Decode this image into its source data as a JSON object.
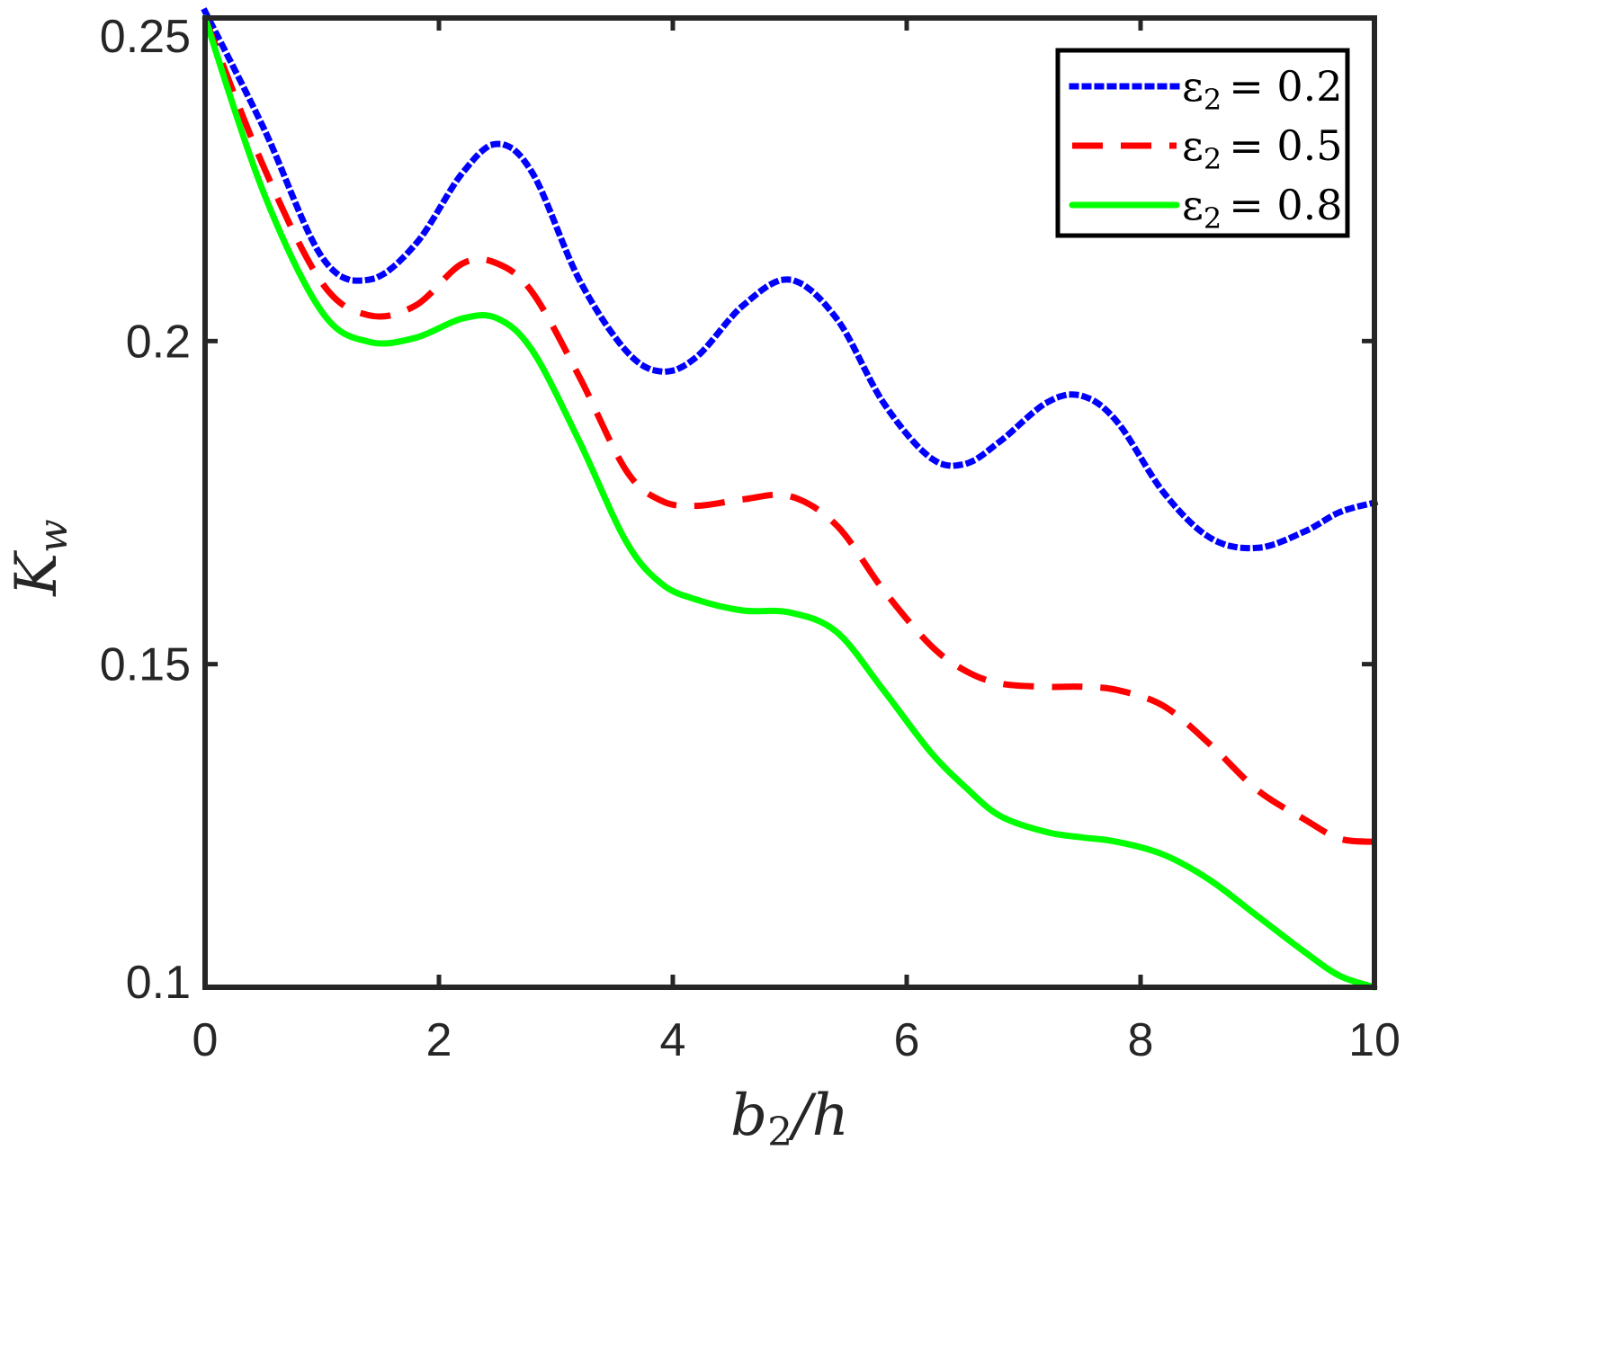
{
  "chart_data": {
    "type": "line",
    "title": "",
    "xlabel": "b_2/h",
    "ylabel": "K_w",
    "xlabel_parts": {
      "base": "b",
      "sub": "2",
      "rest": "/h"
    },
    "ylabel_parts": {
      "base": "K",
      "sub": "w"
    },
    "xlim": [
      0,
      10
    ],
    "ylim": [
      0.1,
      0.25
    ],
    "xticks": [
      0,
      2,
      4,
      6,
      8,
      10
    ],
    "xtick_labels": [
      "0",
      "2",
      "4",
      "6",
      "8",
      "10"
    ],
    "yticks": [
      0.1,
      0.15,
      0.2,
      0.25
    ],
    "ytick_labels": [
      "0.1",
      "0.15",
      "0.2",
      "0.25"
    ],
    "grid": false,
    "legend_position": "top-right",
    "x": [
      0,
      0.5,
      1.0,
      1.4,
      1.8,
      2.2,
      2.5,
      2.8,
      3.2,
      3.6,
      3.9,
      4.2,
      4.6,
      5.0,
      5.4,
      5.8,
      6.2,
      6.5,
      6.8,
      7.2,
      7.5,
      7.8,
      8.2,
      8.6,
      9.0,
      9.4,
      9.7,
      10.0
    ],
    "series": [
      {
        "name": "ε2 = 0.2",
        "legend_symbol": "ε",
        "legend_sub": "2",
        "legend_value": "= 0.2",
        "color": "#0000ff",
        "style": "dotted",
        "values": [
          0.251,
          0.233,
          0.213,
          0.2095,
          0.215,
          0.226,
          0.2305,
          0.226,
          0.2095,
          0.1985,
          0.1953,
          0.1975,
          0.2055,
          0.2095,
          0.2035,
          0.1905,
          0.182,
          0.181,
          0.1845,
          0.1905,
          0.1915,
          0.1875,
          0.1765,
          0.1695,
          0.168,
          0.1705,
          0.1735,
          0.175
        ]
      },
      {
        "name": "ε2 = 0.5",
        "legend_symbol": "ε",
        "legend_sub": "2",
        "legend_value": "= 0.5",
        "color": "#ff0000",
        "style": "dashed",
        "values": [
          0.25,
          0.227,
          0.209,
          0.204,
          0.2055,
          0.212,
          0.212,
          0.2075,
          0.1945,
          0.18,
          0.1753,
          0.1745,
          0.1755,
          0.176,
          0.1715,
          0.1615,
          0.153,
          0.149,
          0.147,
          0.1465,
          0.1465,
          0.146,
          0.1435,
          0.1375,
          0.1305,
          0.126,
          0.123,
          0.1225
        ]
      },
      {
        "name": "ε2 = 0.8",
        "legend_symbol": "ε",
        "legend_sub": "2",
        "legend_value": "= 0.8",
        "color": "#00ff00",
        "style": "solid",
        "values": [
          0.25,
          0.223,
          0.2045,
          0.1999,
          0.2005,
          0.2035,
          0.2035,
          0.1985,
          0.1845,
          0.169,
          0.1625,
          0.16,
          0.1583,
          0.158,
          0.155,
          0.146,
          0.1365,
          0.131,
          0.1265,
          0.124,
          0.1232,
          0.1225,
          0.1205,
          0.1165,
          0.111,
          0.1055,
          0.1018,
          0.1
        ]
      }
    ]
  }
}
